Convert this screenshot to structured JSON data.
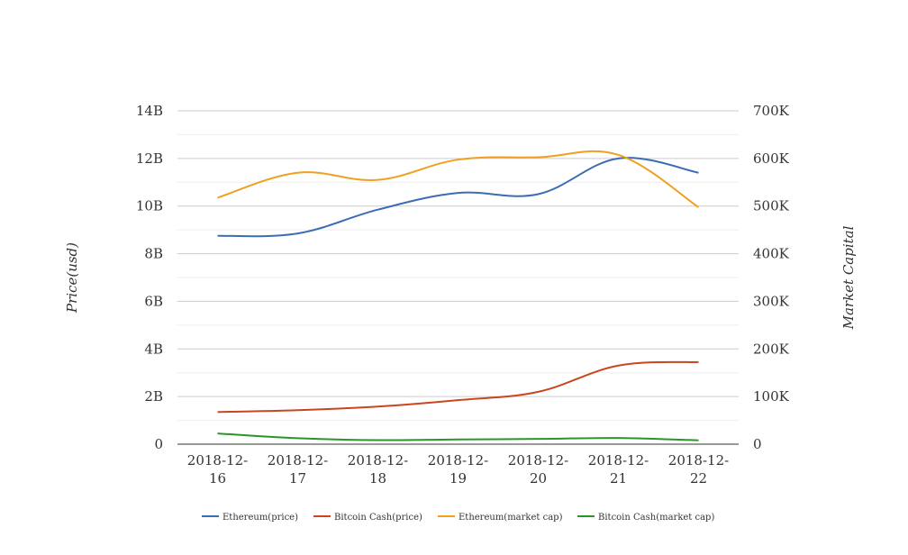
{
  "chart_data": {
    "type": "line",
    "title": "",
    "categories": [
      "2018-12-16",
      "2018-12-17",
      "2018-12-18",
      "2018-12-19",
      "2018-12-20",
      "2018-12-21",
      "2018-12-22"
    ],
    "category_lines": [
      [
        "2018-12-",
        "16"
      ],
      [
        "2018-12-",
        "17"
      ],
      [
        "2018-12-",
        "18"
      ],
      [
        "2018-12-",
        "19"
      ],
      [
        "2018-12-",
        "20"
      ],
      [
        "2018-12-",
        "21"
      ],
      [
        "2018-12-",
        "22"
      ]
    ],
    "ylabel": "Price(usd)",
    "y2label": "Market Capital",
    "ylim": [
      0,
      14000000000
    ],
    "y2lim": [
      0,
      700000
    ],
    "yticks": [
      "0",
      "2B",
      "4B",
      "6B",
      "8B",
      "10B",
      "12B",
      "14B"
    ],
    "y2ticks": [
      "0",
      "100K",
      "200K",
      "300K",
      "400K",
      "500K",
      "600K",
      "700K"
    ],
    "grid": true,
    "legend_position": "bottom",
    "series": [
      {
        "name": "Ethereum(price)",
        "color": "#3b6db5",
        "axis": "left",
        "values": [
          8750000000,
          8850000000,
          9850000000,
          10550000000,
          10500000000,
          12000000000,
          11400000000
        ]
      },
      {
        "name": "Bitcoin Cash(price)",
        "color": "#c9461e",
        "axis": "left",
        "values": [
          1350000000,
          1430000000,
          1580000000,
          1850000000,
          2200000000,
          3300000000,
          3450000000
        ]
      },
      {
        "name": "Ethereum(market cap)",
        "color": "#f0a01e",
        "axis": "left",
        "values": [
          10350000000,
          11400000000,
          11100000000,
          11950000000,
          12050000000,
          12150000000,
          9950000000
        ]
      },
      {
        "name": "Bitcoin Cash(market cap)",
        "color": "#2a962a",
        "axis": "left",
        "values": [
          450000000,
          250000000,
          170000000,
          200000000,
          220000000,
          260000000,
          160000000
        ]
      }
    ]
  }
}
